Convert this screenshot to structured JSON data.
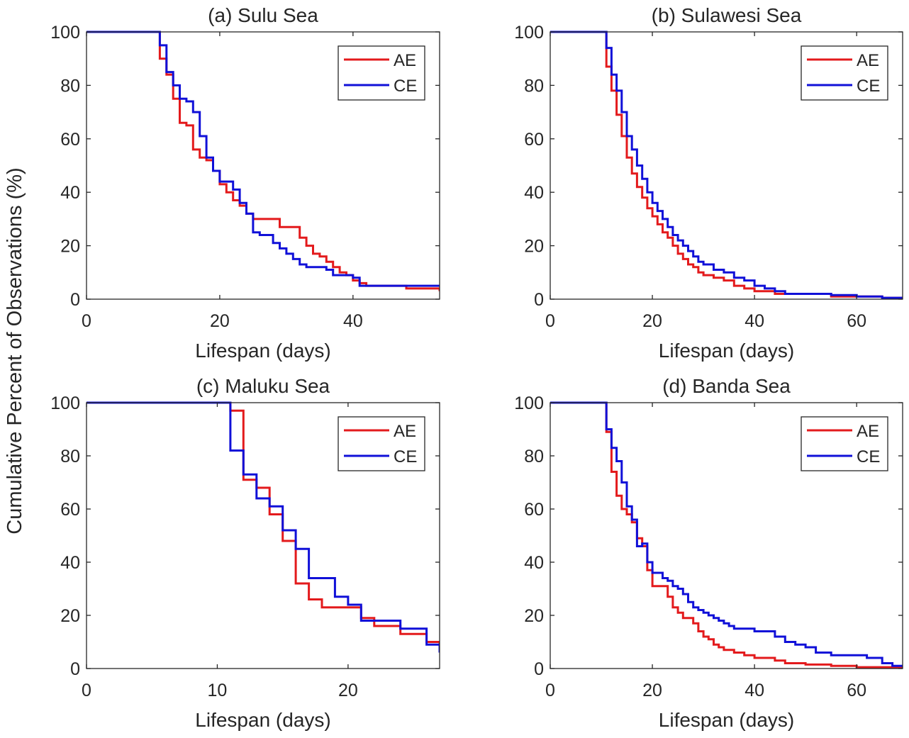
{
  "figure": {
    "ylabel": "Cumulative Percent of Observations (%)"
  },
  "colors": {
    "AE": "#e31a1c",
    "CE": "#1010d8",
    "axis": "#262626"
  },
  "chart_data": [
    {
      "type": "line",
      "step": true,
      "title": "(a) Sulu Sea",
      "xlabel": "Lifespan (days)",
      "ylabel": "",
      "xlim": [
        0,
        53
      ],
      "ylim": [
        0,
        100
      ],
      "xticks": [
        0,
        20,
        40
      ],
      "yticks": [
        0,
        20,
        40,
        60,
        80,
        100
      ],
      "legend": [
        "AE",
        "CE"
      ],
      "legend_position": "top-right",
      "series": [
        {
          "name": "AE",
          "x": [
            0,
            11,
            12,
            13,
            14,
            15,
            16,
            17,
            18,
            19,
            20,
            21,
            22,
            23,
            24,
            25,
            26,
            27,
            28,
            29,
            30,
            31,
            32,
            33,
            34,
            35,
            36,
            37,
            38,
            39,
            40,
            41,
            42,
            45,
            48,
            53
          ],
          "y": [
            100,
            90,
            84,
            75,
            66,
            65,
            56,
            53,
            52,
            48,
            43,
            40,
            37,
            35,
            32,
            30,
            30,
            30,
            30,
            27,
            27,
            27,
            23,
            20,
            17,
            16,
            14,
            12,
            10,
            9,
            7,
            6,
            5,
            5,
            4,
            3
          ]
        },
        {
          "name": "CE",
          "x": [
            0,
            11,
            12,
            13,
            14,
            15,
            16,
            17,
            18,
            19,
            20,
            21,
            22,
            23,
            24,
            25,
            26,
            27,
            28,
            29,
            30,
            31,
            32,
            33,
            34,
            35,
            36,
            37,
            38,
            39,
            40,
            41,
            53
          ],
          "y": [
            100,
            95,
            85,
            80,
            75,
            74,
            70,
            61,
            53,
            48,
            44,
            44,
            41,
            36,
            32,
            25,
            24,
            24,
            21,
            19,
            17,
            15,
            13,
            12,
            12,
            12,
            11,
            9,
            9,
            9,
            8,
            5,
            5
          ]
        }
      ]
    },
    {
      "type": "line",
      "step": true,
      "title": "(b) Sulawesi Sea",
      "xlabel": "Lifespan (days)",
      "ylabel": "",
      "xlim": [
        0,
        69
      ],
      "ylim": [
        0,
        100
      ],
      "xticks": [
        0,
        20,
        40,
        60
      ],
      "yticks": [
        0,
        20,
        40,
        60,
        80,
        100
      ],
      "legend": [
        "AE",
        "CE"
      ],
      "legend_position": "top-right",
      "series": [
        {
          "name": "AE",
          "x": [
            0,
            11,
            12,
            13,
            14,
            15,
            16,
            17,
            18,
            19,
            20,
            21,
            22,
            23,
            24,
            25,
            26,
            27,
            28,
            29,
            30,
            32,
            34,
            36,
            38,
            40,
            42,
            44,
            46,
            48,
            50,
            55,
            60,
            65,
            69
          ],
          "y": [
            100,
            87,
            78,
            69,
            61,
            53,
            47,
            42,
            38,
            34,
            31,
            28,
            25,
            23,
            20,
            17,
            15,
            13,
            12,
            10,
            9,
            8,
            7,
            5,
            4,
            3,
            3,
            2,
            2,
            2,
            2,
            1,
            1,
            0.5,
            0
          ]
        },
        {
          "name": "CE",
          "x": [
            0,
            11,
            12,
            13,
            14,
            15,
            16,
            17,
            18,
            19,
            20,
            21,
            22,
            23,
            24,
            25,
            26,
            27,
            28,
            29,
            30,
            32,
            34,
            36,
            38,
            40,
            42,
            44,
            46,
            48,
            50,
            55,
            60,
            65,
            69
          ],
          "y": [
            100,
            94,
            84,
            78,
            70,
            61,
            56,
            50,
            45,
            40,
            36,
            33,
            30,
            27,
            24,
            22,
            20,
            18,
            16,
            14,
            13,
            11,
            10,
            8,
            7,
            5,
            4,
            3,
            2,
            2,
            2,
            1.5,
            1,
            0.5,
            0
          ]
        }
      ]
    },
    {
      "type": "line",
      "step": true,
      "title": "(c) Maluku Sea",
      "xlabel": "Lifespan (days)",
      "ylabel": "",
      "xlim": [
        0,
        27
      ],
      "ylim": [
        0,
        100
      ],
      "xticks": [
        0,
        10,
        20
      ],
      "yticks": [
        0,
        20,
        40,
        60,
        80,
        100
      ],
      "legend": [
        "AE",
        "CE"
      ],
      "legend_position": "top-right",
      "series": [
        {
          "name": "AE",
          "x": [
            0,
            11,
            12,
            13,
            14,
            15,
            16,
            17,
            18,
            19,
            20,
            21,
            22,
            23,
            24,
            25,
            26,
            27
          ],
          "y": [
            100,
            97,
            71,
            68,
            58,
            48,
            32,
            26,
            23,
            23,
            23,
            19,
            16,
            16,
            13,
            13,
            10,
            9
          ]
        },
        {
          "name": "CE",
          "x": [
            0,
            11,
            12,
            13,
            14,
            15,
            16,
            17,
            18,
            19,
            20,
            21,
            22,
            23,
            24,
            25,
            26,
            27
          ],
          "y": [
            100,
            82,
            73,
            64,
            61,
            52,
            45,
            34,
            34,
            27,
            24,
            18,
            18,
            18,
            15,
            15,
            9,
            6
          ]
        }
      ]
    },
    {
      "type": "line",
      "step": true,
      "title": "(d) Banda Sea",
      "xlabel": "Lifespan (days)",
      "ylabel": "",
      "xlim": [
        0,
        69
      ],
      "ylim": [
        0,
        100
      ],
      "xticks": [
        0,
        20,
        40,
        60
      ],
      "yticks": [
        0,
        20,
        40,
        60,
        80,
        100
      ],
      "legend": [
        "AE",
        "CE"
      ],
      "legend_position": "top-right",
      "series": [
        {
          "name": "AE",
          "x": [
            0,
            11,
            12,
            13,
            14,
            15,
            16,
            17,
            18,
            19,
            20,
            23,
            24,
            25,
            26,
            27,
            28,
            29,
            30,
            31,
            32,
            33,
            34,
            35,
            36,
            38,
            40,
            42,
            44,
            46,
            50,
            55,
            60,
            65,
            69
          ],
          "y": [
            100,
            89,
            74,
            65,
            60,
            58,
            55,
            49,
            46,
            37,
            31,
            27,
            23,
            21,
            19,
            19,
            17,
            14,
            12,
            11,
            9,
            8,
            7,
            7,
            6,
            5,
            4,
            4,
            3,
            2,
            1.5,
            1,
            0.5,
            0.5,
            0
          ]
        },
        {
          "name": "CE",
          "x": [
            0,
            11,
            12,
            13,
            14,
            15,
            16,
            17,
            18,
            19,
            20,
            22,
            23,
            24,
            25,
            26,
            27,
            28,
            29,
            30,
            31,
            32,
            33,
            34,
            35,
            36,
            38,
            40,
            42,
            44,
            46,
            48,
            50,
            52,
            55,
            60,
            62,
            65,
            67,
            69
          ],
          "y": [
            100,
            90,
            83,
            78,
            70,
            61,
            56,
            46,
            47,
            40,
            36,
            34,
            33,
            31,
            30,
            28,
            25,
            23,
            22,
            21,
            20,
            19,
            18,
            17,
            16,
            15,
            15,
            14,
            14,
            12,
            10,
            9,
            8,
            6,
            5,
            5,
            4,
            2,
            1,
            1
          ]
        }
      ]
    }
  ]
}
